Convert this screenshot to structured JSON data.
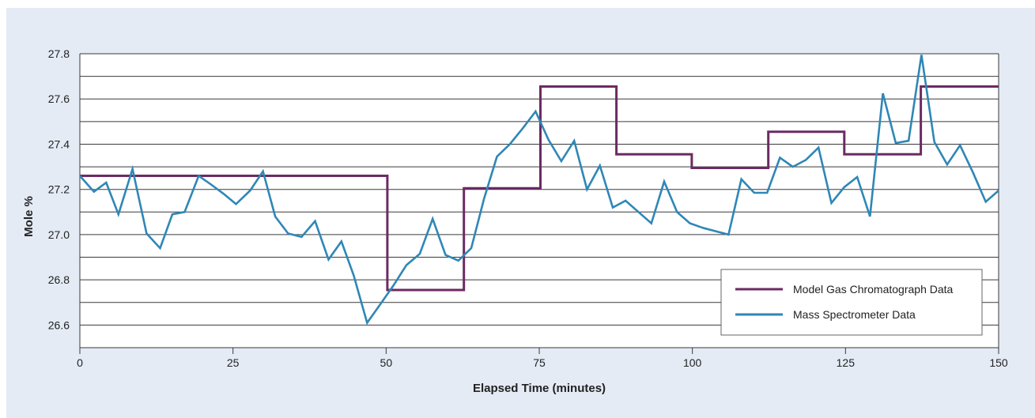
{
  "chart_data": {
    "type": "line",
    "title": "",
    "xlabel": "Elapsed Time (minutes)",
    "ylabel": "Mole %",
    "xlim": [
      0,
      150
    ],
    "ylim": [
      26.5,
      27.8
    ],
    "x_ticks": [
      "0",
      "25",
      "50",
      "75",
      "100",
      "125",
      "150"
    ],
    "y_ticks": [
      "26.6",
      "26.8",
      "27.0",
      "27.2",
      "27.4",
      "27.6",
      "27.8"
    ],
    "grid": true,
    "legend_position": "bottom-right",
    "series": [
      {
        "name": "Model Gas Chromatograph Data",
        "color": "#6b2b63",
        "style": "step",
        "x": [
          0,
          50.2,
          50.2,
          62.7,
          62.7,
          75.2,
          75.2,
          87.6,
          87.6,
          99.9,
          99.9,
          112.4,
          112.4,
          124.8,
          124.8,
          137.3,
          137.3,
          150
        ],
        "y": [
          27.26,
          27.26,
          26.755,
          26.755,
          27.205,
          27.205,
          27.655,
          27.655,
          27.355,
          27.355,
          27.295,
          27.295,
          27.455,
          27.455,
          27.355,
          27.355,
          27.655,
          27.655
        ]
      },
      {
        "name": "Mass Spectrometer Data",
        "color": "#2f87b6",
        "style": "line",
        "x": [
          0,
          2.3,
          4.3,
          6.3,
          8.6,
          10.9,
          13.1,
          15.1,
          17.1,
          19.4,
          21.5,
          23.5,
          25.5,
          27.8,
          29.9,
          31.9,
          34,
          36.2,
          38.4,
          40.6,
          42.7,
          44.7,
          46.9,
          49,
          51.2,
          53.3,
          55.5,
          57.6,
          59.7,
          61.8,
          63.9,
          66,
          68.1,
          70.2,
          72.3,
          74.4,
          76.5,
          78.6,
          80.7,
          82.8,
          84.9,
          87.0,
          89.1,
          91.2,
          93.3,
          95.4,
          97.5,
          99.6,
          101.7,
          103.8,
          105.9,
          108.0,
          110.1,
          112.2,
          114.3,
          116.4,
          118.5,
          120.6,
          122.7,
          124.8,
          126.9,
          129.0,
          131.1,
          133.2,
          135.3,
          137.4,
          139.5,
          141.6,
          143.7,
          145.8,
          147.9,
          150
        ],
        "y": [
          27.26,
          27.19,
          27.23,
          27.09,
          27.29,
          27.005,
          26.94,
          27.09,
          27.1,
          27.26,
          27.22,
          27.18,
          27.135,
          27.195,
          27.28,
          27.08,
          27.005,
          26.99,
          27.06,
          26.89,
          26.97,
          26.82,
          26.61,
          26.69,
          26.775,
          26.865,
          26.915,
          27.07,
          26.91,
          26.885,
          26.94,
          27.16,
          27.345,
          27.4,
          27.47,
          27.545,
          27.42,
          27.325,
          27.415,
          27.2,
          27.305,
          27.12,
          27.15,
          27.1,
          27.05,
          27.235,
          27.1,
          27.05,
          27.03,
          27.015,
          27.0,
          27.245,
          27.185,
          27.185,
          27.34,
          27.3,
          27.33,
          27.385,
          27.14,
          27.21,
          27.255,
          27.08,
          27.625,
          27.405,
          27.415,
          27.795,
          27.41,
          27.31,
          27.395,
          27.275,
          27.145,
          27.195
        ]
      }
    ]
  }
}
